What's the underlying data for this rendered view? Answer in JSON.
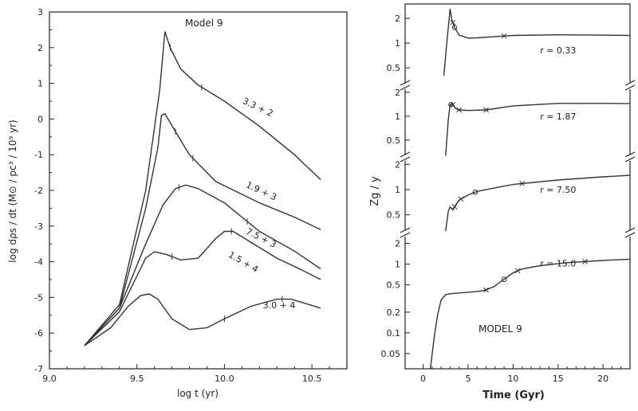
{
  "chart_data": [
    {
      "type": "line",
      "panel": "left",
      "title": "Model 9",
      "xlabel": "log t (yr)",
      "ylabel": "log dρs / dt (M⊙ / pc³ / 10⁹ yr)",
      "xlim": [
        9.0,
        10.7
      ],
      "ylim": [
        -7,
        3
      ],
      "xticks": [
        9.0,
        9.5,
        10.0,
        10.5
      ],
      "xtick_labels": [
        "9.0",
        "9.5",
        "10.0",
        "10.5"
      ],
      "yticks": [
        -7,
        -6,
        -5,
        -4,
        -3,
        -2,
        -1,
        0,
        1,
        2,
        3
      ],
      "ytick_labels": [
        "-7",
        "-6",
        "-5",
        "-4",
        "-3",
        "-2",
        "-1",
        "0",
        "1",
        "2",
        "3"
      ],
      "series": [
        {
          "name": "3.3 + 2",
          "x": [
            9.2,
            9.4,
            9.55,
            9.63,
            9.66,
            9.69,
            9.75,
            9.85,
            10.0,
            10.2,
            10.4,
            10.55
          ],
          "y": [
            -6.35,
            -5.2,
            -2.0,
            0.8,
            2.45,
            2.0,
            1.4,
            0.95,
            0.5,
            -0.2,
            -1.0,
            -1.7
          ],
          "markers_x": [
            9.69,
            9.87
          ]
        },
        {
          "name": "1.9 + 3",
          "x": [
            9.2,
            9.4,
            9.55,
            9.62,
            9.64,
            9.66,
            9.72,
            9.8,
            9.95,
            10.2,
            10.4,
            10.55
          ],
          "y": [
            -6.35,
            -5.3,
            -2.5,
            -0.8,
            0.1,
            0.15,
            -0.35,
            -1.0,
            -1.75,
            -2.35,
            -2.75,
            -3.1
          ],
          "markers_x": [
            9.72,
            9.82
          ]
        },
        {
          "name": "7.5 + 3",
          "x": [
            9.2,
            9.4,
            9.55,
            9.65,
            9.72,
            9.78,
            9.85,
            10.0,
            10.2,
            10.4,
            10.55
          ],
          "y": [
            -6.35,
            -5.3,
            -3.5,
            -2.4,
            -1.95,
            -1.85,
            -1.95,
            -2.35,
            -3.15,
            -3.7,
            -4.2
          ],
          "markers_x": [
            9.74,
            10.13
          ]
        },
        {
          "name": "1.5 + 4",
          "x": [
            9.2,
            9.4,
            9.5,
            9.55,
            9.6,
            9.67,
            9.75,
            9.85,
            9.95,
            10.0,
            10.05,
            10.15,
            10.3,
            10.45,
            10.55
          ],
          "y": [
            -6.35,
            -5.4,
            -4.4,
            -3.9,
            -3.72,
            -3.8,
            -3.95,
            -3.9,
            -3.35,
            -3.15,
            -3.15,
            -3.45,
            -3.9,
            -4.25,
            -4.5
          ],
          "markers_x": [
            9.7,
            10.04
          ]
        },
        {
          "name": "3.0 + 4",
          "x": [
            9.2,
            9.35,
            9.45,
            9.52,
            9.57,
            9.62,
            9.7,
            9.8,
            9.9,
            10.0,
            10.15,
            10.3,
            10.38,
            10.45,
            10.55
          ],
          "y": [
            -6.35,
            -5.85,
            -5.25,
            -4.95,
            -4.9,
            -5.05,
            -5.6,
            -5.9,
            -5.85,
            -5.6,
            -5.25,
            -5.05,
            -5.05,
            -5.15,
            -5.3
          ],
          "markers_x": [
            10.0,
            10.33
          ]
        }
      ]
    },
    {
      "type": "line",
      "panel": "right",
      "title": "MODEL 9",
      "xlabel": "Time (Gyr)",
      "ylabel": "Zg / y",
      "xlim": [
        -2,
        23
      ],
      "xticks": [
        0,
        5,
        10,
        15,
        20
      ],
      "xtick_labels": [
        "0",
        "5",
        "10",
        "15",
        "20"
      ],
      "yscale": "log",
      "subpanels": [
        {
          "label": "r = 0.33",
          "ylim": [
            0.3,
            2.8
          ],
          "yticks": [
            0.5,
            1,
            2
          ],
          "ytick_labels": [
            "0.5",
            "1",
            "2"
          ],
          "x": [
            2.3,
            2.7,
            3.0,
            3.2,
            3.5,
            4.0,
            5.0,
            6.0,
            8.0,
            10.0,
            15.0,
            20.0,
            23.0
          ],
          "y": [
            0.4,
            1.2,
            2.6,
            1.9,
            1.55,
            1.25,
            1.15,
            1.16,
            1.2,
            1.24,
            1.26,
            1.25,
            1.24
          ],
          "circle_x": 3.5,
          "cross_x": [
            3.3,
            9.0
          ]
        },
        {
          "label": "r = 1.87",
          "ylim": [
            0.3,
            2.4
          ],
          "yticks": [
            0.5,
            1,
            2
          ],
          "ytick_labels": [
            "0.5",
            "1",
            "2"
          ],
          "x": [
            2.5,
            2.8,
            3.0,
            3.3,
            3.6,
            4.0,
            5.0,
            7.0,
            10.0,
            15.0,
            20.0,
            23.0
          ],
          "y": [
            0.32,
            0.9,
            1.4,
            1.4,
            1.25,
            1.2,
            1.18,
            1.2,
            1.35,
            1.45,
            1.45,
            1.44
          ],
          "circle_x": 3.1,
          "cross_x": [
            3.3,
            4.0,
            7.0
          ]
        },
        {
          "label": "r = 7.50",
          "ylim": [
            0.3,
            2.4
          ],
          "yticks": [
            0.5,
            1,
            2
          ],
          "ytick_labels": [
            "0.5",
            "1",
            "2"
          ],
          "x": [
            2.5,
            2.8,
            3.0,
            3.3,
            3.6,
            4.0,
            5.0,
            6.0,
            8.0,
            10.0,
            15.0,
            20.0,
            23.0
          ],
          "y": [
            0.32,
            0.55,
            0.62,
            0.57,
            0.65,
            0.75,
            0.86,
            0.95,
            1.05,
            1.15,
            1.3,
            1.42,
            1.48
          ],
          "circle_x": 5.8,
          "cross_x": [
            3.5,
            4.2,
            11.0
          ]
        },
        {
          "label": "r = 15.0",
          "ylim": [
            0.03,
            2.8
          ],
          "yticks": [
            0.05,
            0.1,
            0.2,
            0.5,
            1,
            2
          ],
          "ytick_labels": [
            "0.05",
            "0.1",
            "0.2",
            "0.5",
            "1",
            "2"
          ],
          "x": [
            0.8,
            1.2,
            1.6,
            2.0,
            2.5,
            3.0,
            4.0,
            5.0,
            6.0,
            7.0,
            8.0,
            8.5,
            9.0,
            10.0,
            11.0,
            13.0,
            16.0,
            20.0,
            23.0
          ],
          "y": [
            0.03,
            0.08,
            0.18,
            0.3,
            0.36,
            0.37,
            0.38,
            0.39,
            0.4,
            0.42,
            0.48,
            0.54,
            0.6,
            0.75,
            0.85,
            0.95,
            1.05,
            1.13,
            1.18
          ],
          "circle_x": 9.0,
          "cross_x": [
            7.0,
            10.5,
            18.0
          ]
        }
      ]
    }
  ]
}
